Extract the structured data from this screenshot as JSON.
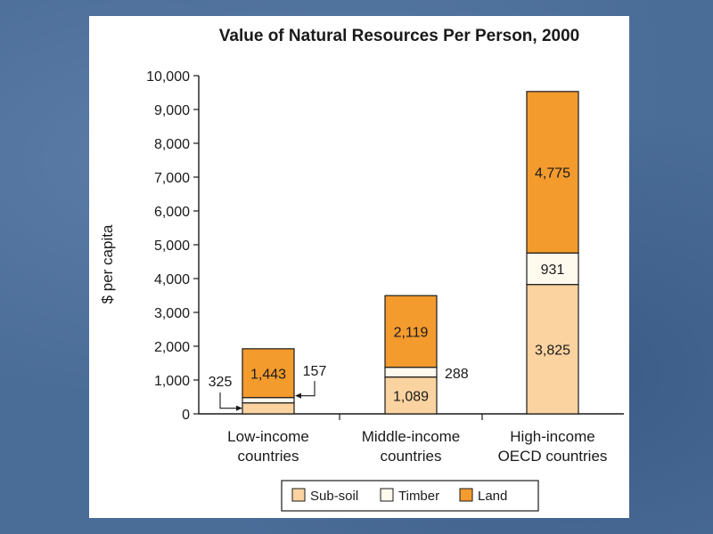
{
  "chart_data": {
    "type": "bar",
    "stacked": true,
    "title": "Value of Natural Resources Per Person, 2000",
    "xlabel": "",
    "ylabel": "$ per capita",
    "ylim": [
      0,
      10000
    ],
    "yticks": [
      "0",
      "1,000",
      "2,000",
      "3,000",
      "4,000",
      "5,000",
      "6,000",
      "7,000",
      "8,000",
      "9,000",
      "10,000"
    ],
    "categories": [
      [
        "Low-income",
        "countries"
      ],
      [
        "Middle-income",
        "countries"
      ],
      [
        "High-income",
        "OECD countries"
      ]
    ],
    "series": [
      {
        "name": "Sub-soil",
        "color": "#fbd3a0",
        "values": [
          325,
          1089,
          3825
        ],
        "labels": [
          "325",
          "1,089",
          "3,825"
        ]
      },
      {
        "name": "Timber",
        "color": "#fff9ee",
        "values": [
          157,
          288,
          931
        ],
        "labels": [
          "157",
          "288",
          "931"
        ]
      },
      {
        "name": "Land",
        "color": "#f49b2e",
        "values": [
          1443,
          2119,
          4775
        ],
        "labels": [
          "1,443",
          "2,119",
          "4,775"
        ]
      }
    ],
    "legend_position": "bottom"
  }
}
